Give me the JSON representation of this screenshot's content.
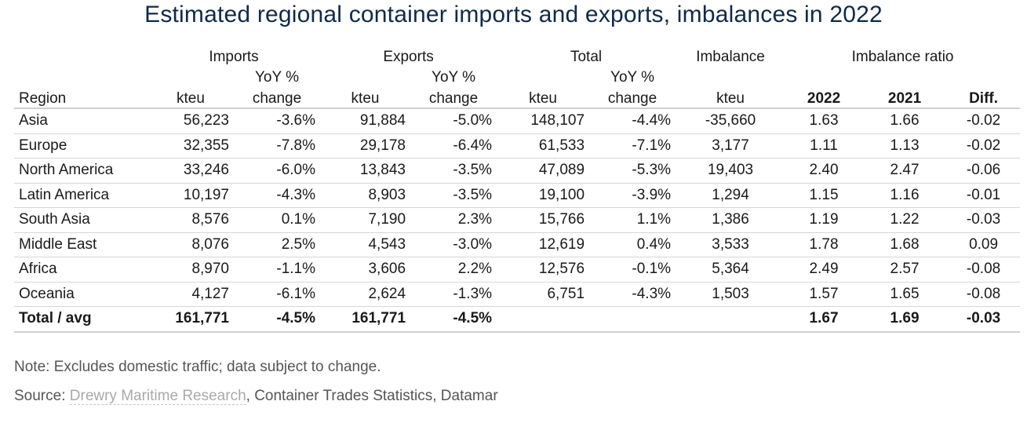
{
  "title": "Estimated regional container imports and exports, imbalances in 2022",
  "headers": {
    "groups": {
      "imports": "Imports",
      "exports": "Exports",
      "total": "Total",
      "imbalance": "Imbalance",
      "ratio": "Imbalance ratio"
    },
    "yoy_line1": "YoY %",
    "yoy_line2": "change",
    "region": "Region",
    "kteu": "kteu",
    "y2022": "2022",
    "y2021": "2021",
    "diff": "Diff."
  },
  "rows": [
    {
      "region": "Asia",
      "imp": "56,223",
      "imp_yoy": "-3.6%",
      "exp": "91,884",
      "exp_yoy": "-5.0%",
      "tot": "148,107",
      "tot_yoy": "-4.4%",
      "imb": "-35,660",
      "r2022": "1.63",
      "r2021": "1.66",
      "diff": "-0.02"
    },
    {
      "region": "Europe",
      "imp": "32,355",
      "imp_yoy": "-7.8%",
      "exp": "29,178",
      "exp_yoy": "-6.4%",
      "tot": "61,533",
      "tot_yoy": "-7.1%",
      "imb": "3,177",
      "r2022": "1.11",
      "r2021": "1.13",
      "diff": "-0.02"
    },
    {
      "region": "North America",
      "imp": "33,246",
      "imp_yoy": "-6.0%",
      "exp": "13,843",
      "exp_yoy": "-3.5%",
      "tot": "47,089",
      "tot_yoy": "-5.3%",
      "imb": "19,403",
      "r2022": "2.40",
      "r2021": "2.47",
      "diff": "-0.06"
    },
    {
      "region": "Latin America",
      "imp": "10,197",
      "imp_yoy": "-4.3%",
      "exp": "8,903",
      "exp_yoy": "-3.5%",
      "tot": "19,100",
      "tot_yoy": "-3.9%",
      "imb": "1,294",
      "r2022": "1.15",
      "r2021": "1.16",
      "diff": "-0.01"
    },
    {
      "region": "South Asia",
      "imp": "8,576",
      "imp_yoy": "0.1%",
      "exp": "7,190",
      "exp_yoy": "2.3%",
      "tot": "15,766",
      "tot_yoy": "1.1%",
      "imb": "1,386",
      "r2022": "1.19",
      "r2021": "1.22",
      "diff": "-0.03"
    },
    {
      "region": "Middle East",
      "imp": "8,076",
      "imp_yoy": "2.5%",
      "exp": "4,543",
      "exp_yoy": "-3.0%",
      "tot": "12,619",
      "tot_yoy": "0.4%",
      "imb": "3,533",
      "r2022": "1.78",
      "r2021": "1.68",
      "diff": "0.09"
    },
    {
      "region": "Africa",
      "imp": "8,970",
      "imp_yoy": "-1.1%",
      "exp": "3,606",
      "exp_yoy": "2.2%",
      "tot": "12,576",
      "tot_yoy": "-0.1%",
      "imb": "5,364",
      "r2022": "2.49",
      "r2021": "2.57",
      "diff": "-0.08"
    },
    {
      "region": "Oceania",
      "imp": "4,127",
      "imp_yoy": "-6.1%",
      "exp": "2,624",
      "exp_yoy": "-1.3%",
      "tot": "6,751",
      "tot_yoy": "-4.3%",
      "imb": "1,503",
      "r2022": "1.57",
      "r2021": "1.65",
      "diff": "-0.08"
    }
  ],
  "total_row": {
    "region": "Total / avg",
    "imp": "161,771",
    "imp_yoy": "-4.5%",
    "exp": "161,771",
    "exp_yoy": "-4.5%",
    "tot": "",
    "tot_yoy": "",
    "imb": "",
    "r2022": "1.67",
    "r2021": "1.69",
    "diff": "-0.03"
  },
  "note": "Note: Excludes domestic traffic; data subject to change.",
  "source": {
    "prefix": "Source: ",
    "link": "Drewry Maritime Research",
    "rest": ", Container Trades Statistics, Datamar"
  }
}
